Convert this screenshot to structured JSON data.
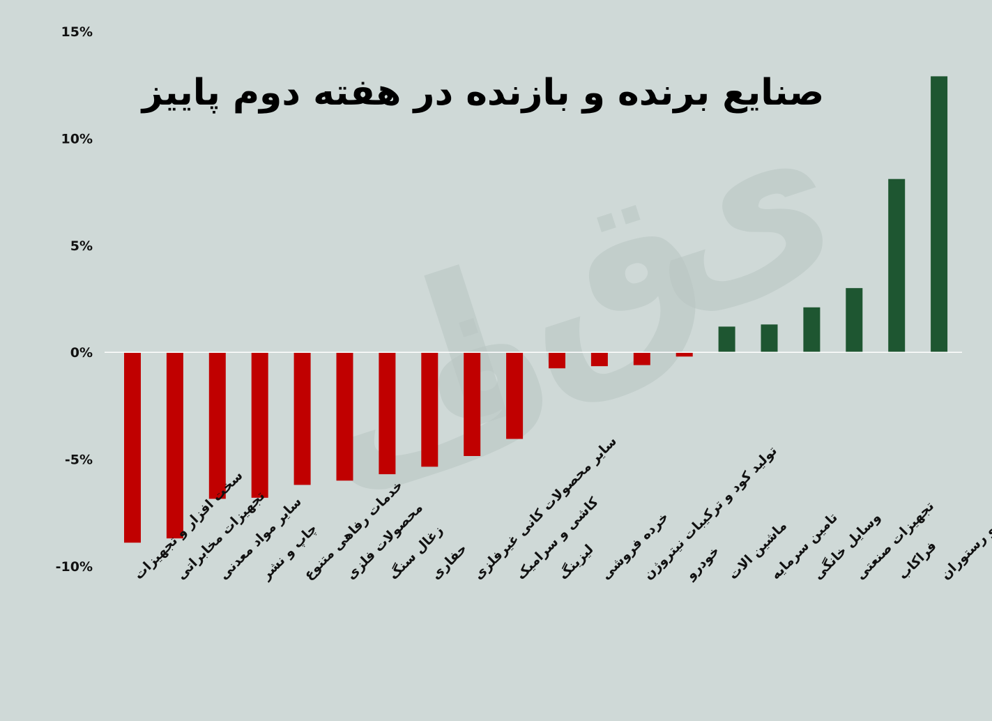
{
  "chart_data": {
    "type": "bar",
    "title": "صنایع برنده و بازنده در هفته دوم پاییز",
    "xlabel": "",
    "ylabel": "",
    "ylim": [
      -10,
      15
    ],
    "yticks": [
      15,
      10,
      5,
      0,
      -5,
      -10
    ],
    "ytick_labels": [
      "15%",
      "10%",
      "5%",
      "0%",
      "-5%",
      "-10%"
    ],
    "grid": false,
    "legend": "none",
    "categories": [
      "سخت افزار و تجهیزات",
      "تجهیزات مخابراتی",
      "سایر مواد معدنی",
      "چاپ و نشر",
      "خدمات رفاهی متنوع",
      "محصولات فلزی",
      "زغال سنگ",
      "حفاری",
      "سایر محصولات کانی غیرفلزی",
      "کاشی و سرامیک",
      "لیزینگ",
      "خرده فروشی",
      "تولید کود و ترکیبات نیتروژن",
      "خودرو",
      "ماشین الات",
      "تامین سرمایه",
      "وسایل خانگی",
      "تجهیزات صنعتی",
      "فراکاب",
      "هتل و رستوران"
    ],
    "values": [
      -8.9,
      -8.7,
      -6.85,
      -6.8,
      -6.2,
      -6.0,
      -5.7,
      -5.35,
      -4.85,
      -4.05,
      -0.75,
      -0.65,
      -0.6,
      -0.2,
      1.2,
      1.3,
      2.1,
      3.0,
      8.1,
      12.9
    ],
    "colors": {
      "negative": "#c00000",
      "positive": "#1e5631",
      "background": "#cfd9d7",
      "axis": "#ffffff"
    }
  }
}
